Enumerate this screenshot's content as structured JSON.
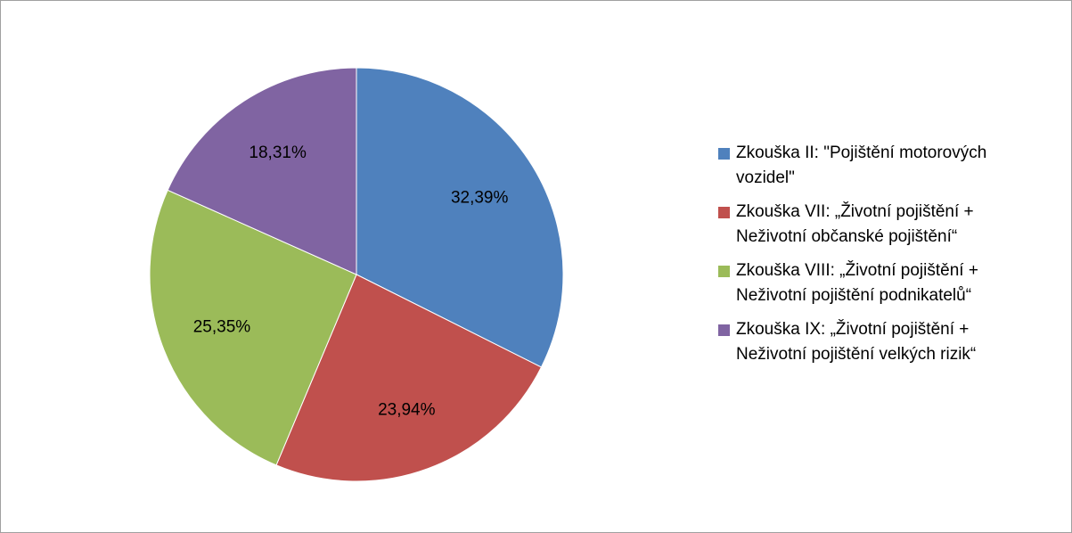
{
  "chart_data": {
    "type": "pie",
    "categories": [
      "Zkouška II: \"Pojištění motorových vozidel\"",
      "Zkouška VII: „Životní pojištění + Neživotní občanské pojištění“",
      "Zkouška VIII: „Životní pojištění + Neživotní pojištění podnikatelů“",
      "Zkouška IX: „Životní pojištění + Neživotní pojištění velkých rizik“"
    ],
    "values": [
      32.39,
      23.94,
      25.35,
      18.31
    ],
    "value_labels": [
      "32,39%",
      "23,94%",
      "25,35%",
      "18,31%"
    ],
    "colors": [
      "#4f81bd",
      "#c0504d",
      "#9bbb59",
      "#8064a2"
    ],
    "legend": "right"
  }
}
